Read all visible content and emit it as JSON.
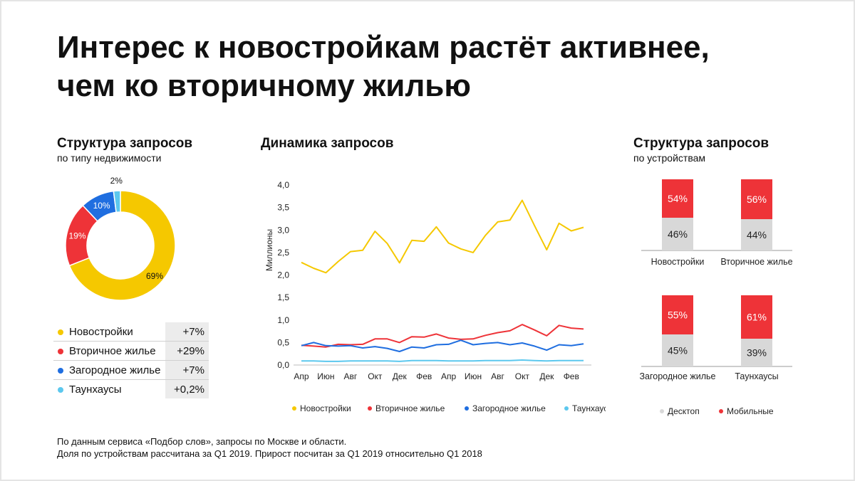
{
  "title": {
    "line1": "Интерес к новостройкам растёт активнее,",
    "line2": "чем ко вторичному жилью"
  },
  "donut_section": {
    "title": "Структура запросов",
    "subtitle": "по типу недвижимости"
  },
  "line_section": {
    "title": "Динамика запросов"
  },
  "device_section": {
    "title": "Структура запросов",
    "subtitle": "по устройствам"
  },
  "legend_table": [
    {
      "name": "Новостройки",
      "growth": "+7%",
      "color": "#f5c800"
    },
    {
      "name": "Вторичное жилье",
      "growth": "+29%",
      "color": "#ee3338"
    },
    {
      "name": "Загородное жилье",
      "growth": "+7%",
      "color": "#1f6ee0"
    },
    {
      "name": "Таунхаусы",
      "growth": "+0,2%",
      "color": "#5cc8ee"
    }
  ],
  "footnote": {
    "line1": "По данным сервиса «Подбор слов», запросы по Москве и области.",
    "line2": "Доля по устройствам рассчитана за Q1 2019. Прирост посчитан за Q1 2019 относительно Q1 2018"
  },
  "chart_data": [
    {
      "type": "pie",
      "title": "Структура запросов",
      "subtitle": "по типу недвижимости",
      "categories": [
        "Новостройки",
        "Вторичное жилье",
        "Загородное жилье",
        "Таунхаусы"
      ],
      "values": [
        69,
        19,
        10,
        2
      ],
      "labels": [
        "69%",
        "19%",
        "10%",
        "2%"
      ],
      "colors": [
        "#f5c800",
        "#ee3338",
        "#1f6ee0",
        "#5cc8ee"
      ]
    },
    {
      "type": "line",
      "title": "Динамика запросов",
      "ylabel": "Миллионы",
      "xlabel": "",
      "ylim": [
        0,
        4
      ],
      "yticks": [
        "0,0",
        "0,5",
        "1,0",
        "1,5",
        "2,0",
        "2,5",
        "3,0",
        "3,5",
        "4,0"
      ],
      "x_tick_labels": [
        "Апр",
        "Июн",
        "Авг",
        "Окт",
        "Дек",
        "Фев",
        "Апр",
        "Июн",
        "Авг",
        "Окт",
        "Дек",
        "Фев"
      ],
      "series": [
        {
          "name": "Новостройки",
          "color": "#f5c800",
          "values": [
            2.28,
            2.15,
            2.05,
            2.3,
            2.52,
            2.55,
            2.97,
            2.7,
            2.27,
            2.77,
            2.75,
            3.07,
            2.71,
            2.58,
            2.5,
            2.88,
            3.18,
            3.22,
            3.66,
            3.1,
            2.56,
            3.15,
            2.98,
            3.06
          ]
        },
        {
          "name": "Вторичное жилье",
          "color": "#ee3338",
          "values": [
            0.44,
            0.42,
            0.4,
            0.46,
            0.45,
            0.46,
            0.58,
            0.58,
            0.5,
            0.63,
            0.62,
            0.69,
            0.6,
            0.57,
            0.58,
            0.66,
            0.72,
            0.76,
            0.9,
            0.78,
            0.65,
            0.88,
            0.82,
            0.8
          ]
        },
        {
          "name": "Загородное жилье",
          "color": "#1f6ee0",
          "values": [
            0.43,
            0.5,
            0.43,
            0.42,
            0.43,
            0.38,
            0.41,
            0.37,
            0.3,
            0.4,
            0.38,
            0.45,
            0.46,
            0.55,
            0.45,
            0.48,
            0.5,
            0.45,
            0.49,
            0.42,
            0.33,
            0.45,
            0.43,
            0.47
          ]
        },
        {
          "name": "Таунхаусы",
          "color": "#5cc8ee",
          "values": [
            0.09,
            0.09,
            0.08,
            0.08,
            0.09,
            0.09,
            0.09,
            0.09,
            0.08,
            0.1,
            0.1,
            0.1,
            0.09,
            0.09,
            0.09,
            0.1,
            0.1,
            0.1,
            0.11,
            0.1,
            0.09,
            0.1,
            0.1,
            0.1
          ]
        }
      ]
    },
    {
      "type": "bar",
      "stacked": true,
      "title": "Структура запросов",
      "subtitle": "по устройствам",
      "categories": [
        "Новостройки",
        "Вторичное жилье",
        "Загородное жилье",
        "Таунхаусы"
      ],
      "series": [
        {
          "name": "Десктоп",
          "color": "#d8d8d8",
          "values": [
            46,
            44,
            45,
            39
          ],
          "labels": [
            "46%",
            "44%",
            "45%",
            "39%"
          ]
        },
        {
          "name": "Мобильные",
          "color": "#ee3338",
          "values": [
            54,
            56,
            55,
            61
          ],
          "labels": [
            "54%",
            "56%",
            "55%",
            "61%"
          ]
        }
      ]
    }
  ]
}
